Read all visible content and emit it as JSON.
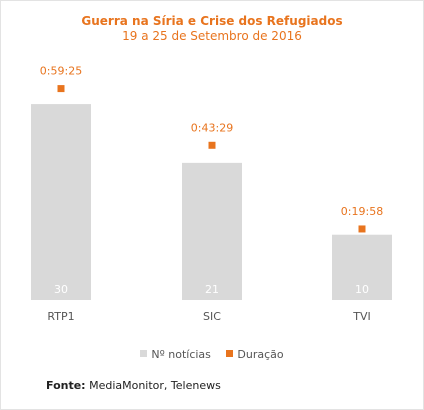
{
  "title": "Guerra na Síria e Crise dos Refugiados",
  "subtitle": "19 a 25 de Setembro de 2016",
  "colors": {
    "bars": "#d9d9d9",
    "duration": "#e8741e",
    "title": "#e8741e"
  },
  "legend": {
    "bars": "Nº notícias",
    "duration": "Duração"
  },
  "source": {
    "label": "Fonte:",
    "text": " MediaMonitor, Telenews"
  },
  "chart_data": {
    "type": "bar",
    "categories": [
      "RTP1",
      "SIC",
      "TVI"
    ],
    "series": [
      {
        "name": "Nº notícias",
        "type": "bar",
        "values": [
          30,
          21,
          10
        ]
      },
      {
        "name": "Duração",
        "type": "scatter",
        "values_seconds": [
          3565,
          2609,
          1198
        ],
        "labels": [
          "0:59:25",
          "0:43:29",
          "0:19:58"
        ]
      }
    ],
    "legend_position": "bottom",
    "grid": false
  }
}
